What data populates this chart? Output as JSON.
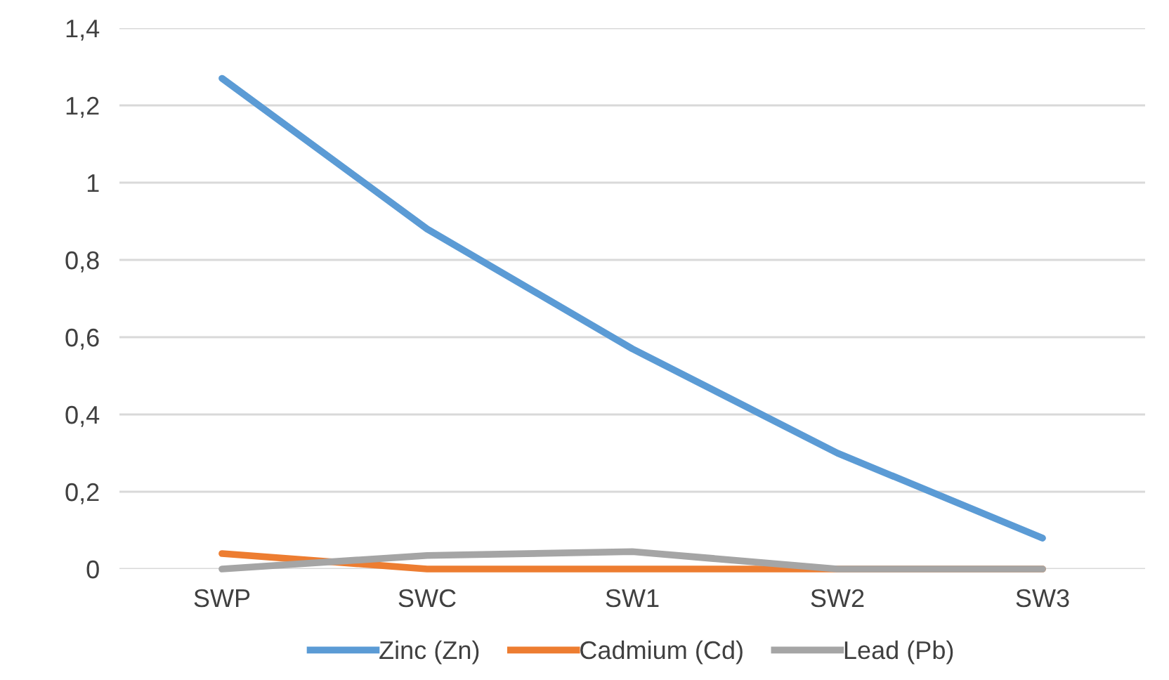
{
  "chart_data": {
    "type": "line",
    "categories": [
      "SWP",
      "SWC",
      "SW1",
      "SW2",
      "SW3"
    ],
    "series": [
      {
        "name": "Zinc (Zn)",
        "color": "#5b9bd5",
        "values": [
          1.27,
          0.88,
          0.57,
          0.3,
          0.08
        ]
      },
      {
        "name": "Cadmium (Cd)",
        "color": "#ed7d31",
        "values": [
          0.04,
          0,
          0,
          0,
          0
        ]
      },
      {
        "name": "Lead (Pb)",
        "color": "#a5a5a5",
        "values": [
          0,
          0.035,
          0.045,
          0,
          0
        ]
      }
    ],
    "ylim": [
      0,
      1.4
    ],
    "yticks": [
      0,
      {
        "value": 0.2,
        "label": "0,2"
      },
      {
        "value": 0.4,
        "label": "0,4"
      },
      {
        "value": 0.6,
        "label": "0,6"
      },
      {
        "value": 0.8,
        "label": "0,8"
      },
      1,
      {
        "value": 1.2,
        "label": "1,2"
      },
      {
        "value": 1.4,
        "label": "1,4"
      }
    ],
    "grid": "y",
    "legend": "bottom",
    "marker": "none",
    "line_style": "solid"
  }
}
